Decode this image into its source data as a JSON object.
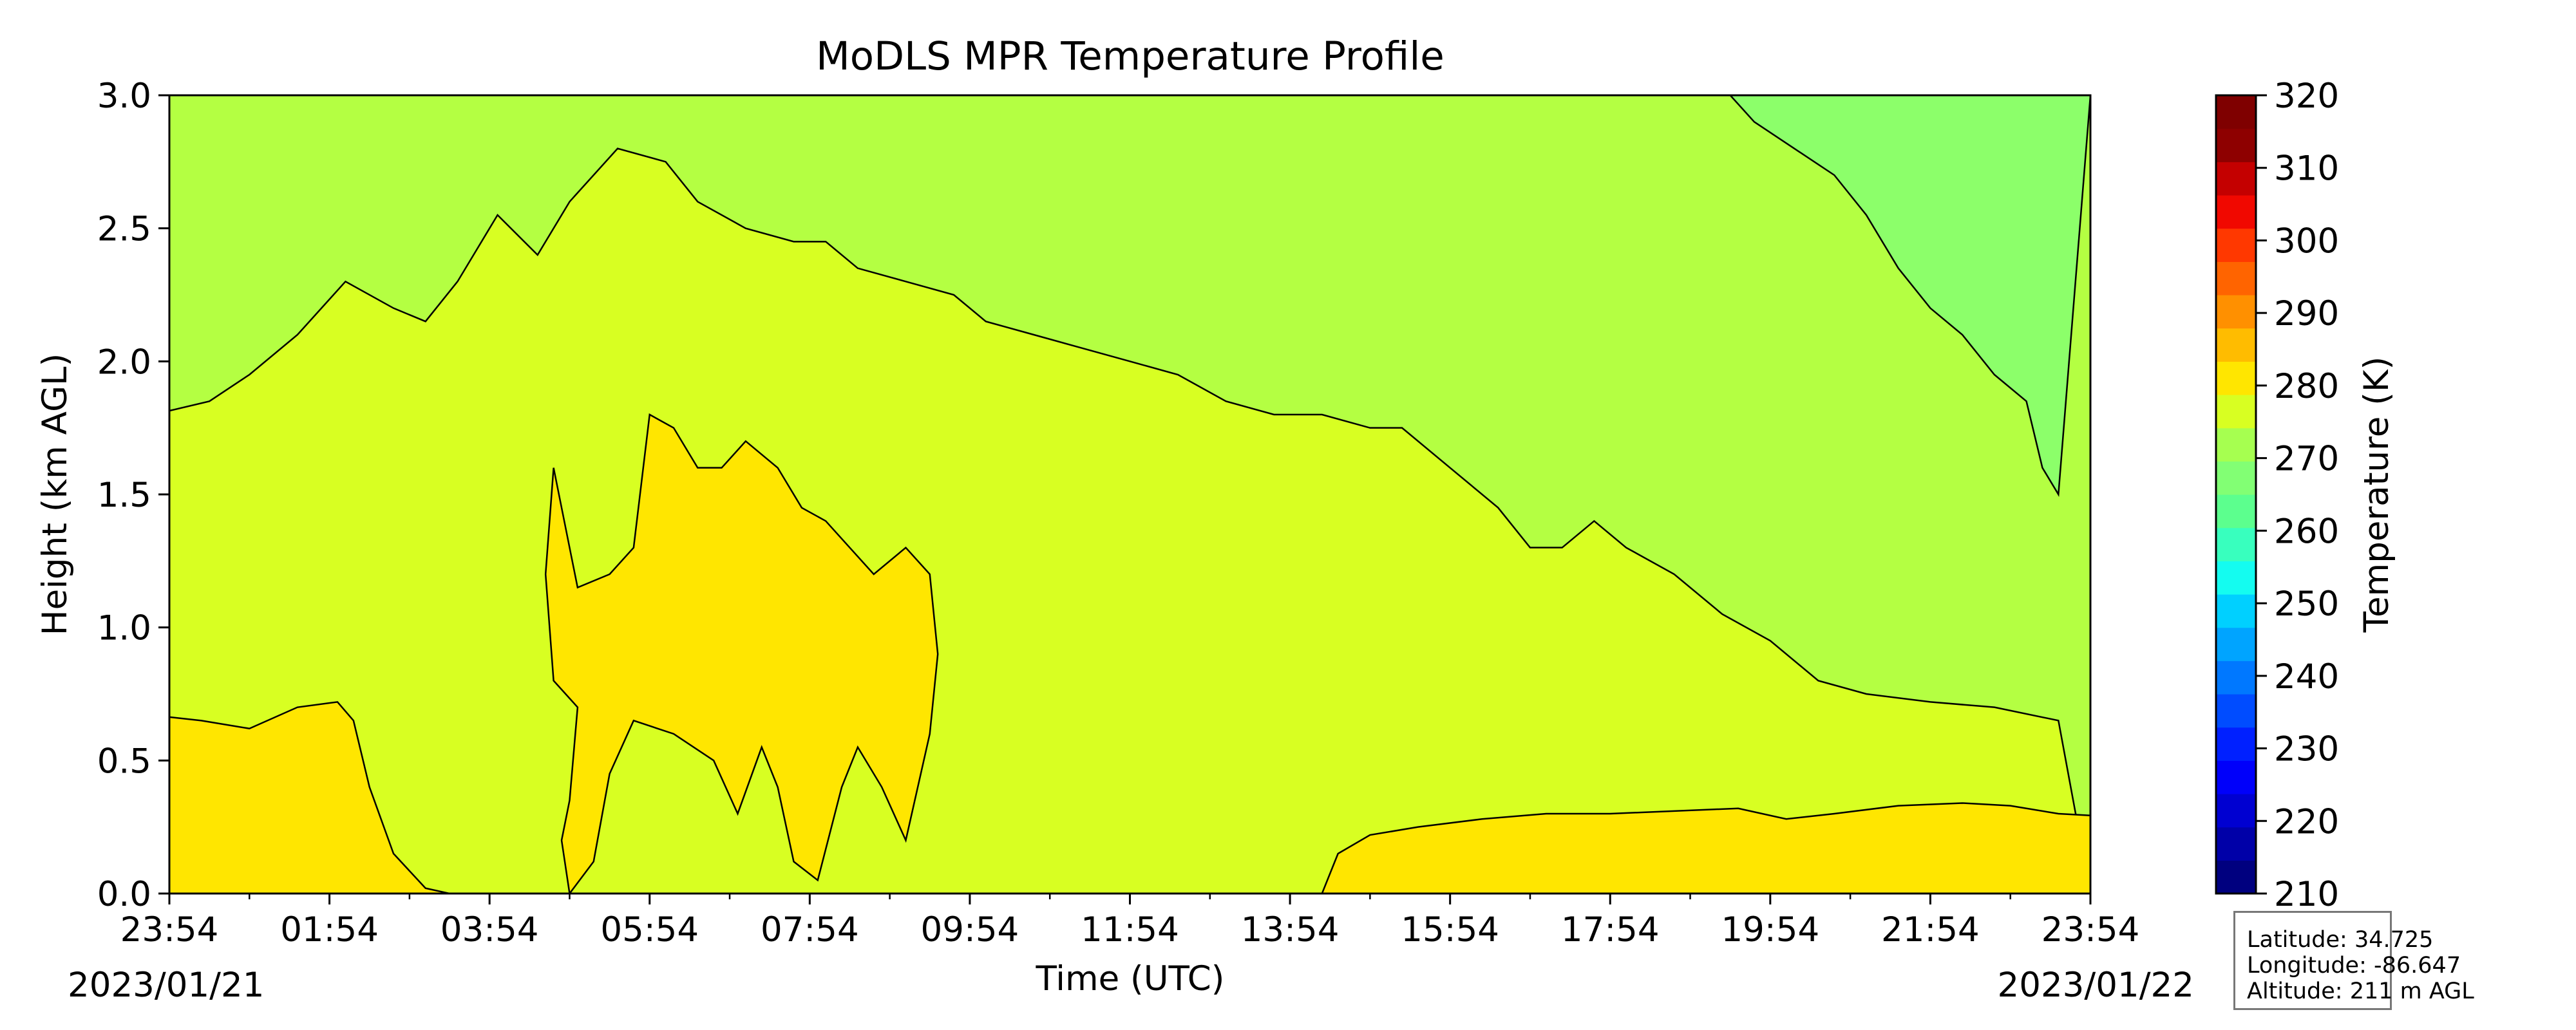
{
  "chart_data": {
    "type": "heatmap",
    "title": "MoDLS MPR Temperature Profile",
    "xlabel": "Time (UTC)",
    "ylabel": "Height (km AGL)",
    "x_ticks": [
      "23:54",
      "01:54",
      "03:54",
      "05:54",
      "07:54",
      "09:54",
      "11:54",
      "13:54",
      "15:54",
      "17:54",
      "19:54",
      "21:54",
      "23:54"
    ],
    "x_start_date": "2023/01/21",
    "x_end_date": "2023/01/22",
    "ylim": [
      0.0,
      3.0
    ],
    "y_ticks": [
      "0.0",
      "0.5",
      "1.0",
      "1.5",
      "2.0",
      "2.5",
      "3.0"
    ],
    "colorbar": {
      "label": "Temperature (K)",
      "range": [
        210,
        320
      ],
      "ticks": [
        "210",
        "220",
        "230",
        "240",
        "250",
        "260",
        "270",
        "280",
        "290",
        "300",
        "310",
        "320"
      ],
      "colors": [
        "#00007f",
        "#0000a8",
        "#0000d1",
        "#0000fa",
        "#0020ff",
        "#004cff",
        "#0078ff",
        "#00a4ff",
        "#00d0ff",
        "#14fcf0",
        "#38ffbe",
        "#5cff8e",
        "#82ff74",
        "#a6ff50",
        "#d8ff22",
        "#ffe600",
        "#ffbc00",
        "#ff9000",
        "#ff6400",
        "#ff3800",
        "#f10800",
        "#c40000",
        "#8e0000",
        "#7f0000"
      ]
    },
    "regions": [
      {
        "name": "265-270 K",
        "color": "#8cff6a",
        "boundary": [
          [
            19.5,
            3.0
          ],
          [
            19.8,
            2.9
          ],
          [
            20.3,
            2.8
          ],
          [
            20.8,
            2.7
          ],
          [
            21.2,
            2.55
          ],
          [
            21.6,
            2.35
          ],
          [
            22.0,
            2.2
          ],
          [
            22.4,
            2.1
          ],
          [
            22.8,
            1.95
          ],
          [
            23.2,
            1.85
          ],
          [
            23.4,
            1.6
          ],
          [
            23.6,
            1.5
          ]
        ]
      },
      {
        "name": "270-275 K",
        "color": "#b4ff42",
        "boundary": [
          [
            -0.2,
            1.8
          ],
          [
            0.5,
            1.85
          ],
          [
            1.0,
            1.95
          ],
          [
            1.6,
            2.1
          ],
          [
            2.2,
            2.3
          ],
          [
            2.8,
            2.2
          ],
          [
            3.2,
            2.15
          ],
          [
            3.6,
            2.3
          ],
          [
            4.1,
            2.55
          ],
          [
            4.6,
            2.4
          ],
          [
            5.0,
            2.6
          ],
          [
            5.6,
            2.8
          ],
          [
            6.2,
            2.75
          ],
          [
            6.6,
            2.6
          ],
          [
            7.2,
            2.5
          ],
          [
            7.8,
            2.45
          ],
          [
            8.2,
            2.45
          ],
          [
            8.6,
            2.35
          ],
          [
            9.2,
            2.3
          ],
          [
            9.8,
            2.25
          ],
          [
            10.2,
            2.15
          ],
          [
            10.8,
            2.1
          ],
          [
            11.4,
            2.05
          ],
          [
            12.0,
            2.0
          ],
          [
            12.6,
            1.95
          ],
          [
            13.2,
            1.85
          ],
          [
            13.8,
            1.8
          ],
          [
            14.4,
            1.8
          ],
          [
            15.0,
            1.75
          ],
          [
            15.4,
            1.75
          ],
          [
            16.0,
            1.6
          ],
          [
            16.6,
            1.45
          ],
          [
            17.0,
            1.3
          ],
          [
            17.4,
            1.3
          ],
          [
            17.8,
            1.4
          ],
          [
            18.2,
            1.3
          ],
          [
            18.8,
            1.2
          ],
          [
            19.4,
            1.05
          ],
          [
            20.0,
            0.95
          ],
          [
            20.6,
            0.8
          ],
          [
            21.2,
            0.75
          ],
          [
            22.0,
            0.72
          ],
          [
            22.8,
            0.7
          ],
          [
            23.6,
            0.65
          ]
        ]
      },
      {
        "name": "275-280 K",
        "color": "#d8ff22"
      },
      {
        "name": "280-285 K",
        "color": "#ffe600"
      }
    ]
  },
  "info_box": {
    "latitude": "Latitude: 34.725",
    "longitude": "Longitude: -86.647",
    "altitude": "Altitude: 211 m AGL"
  }
}
